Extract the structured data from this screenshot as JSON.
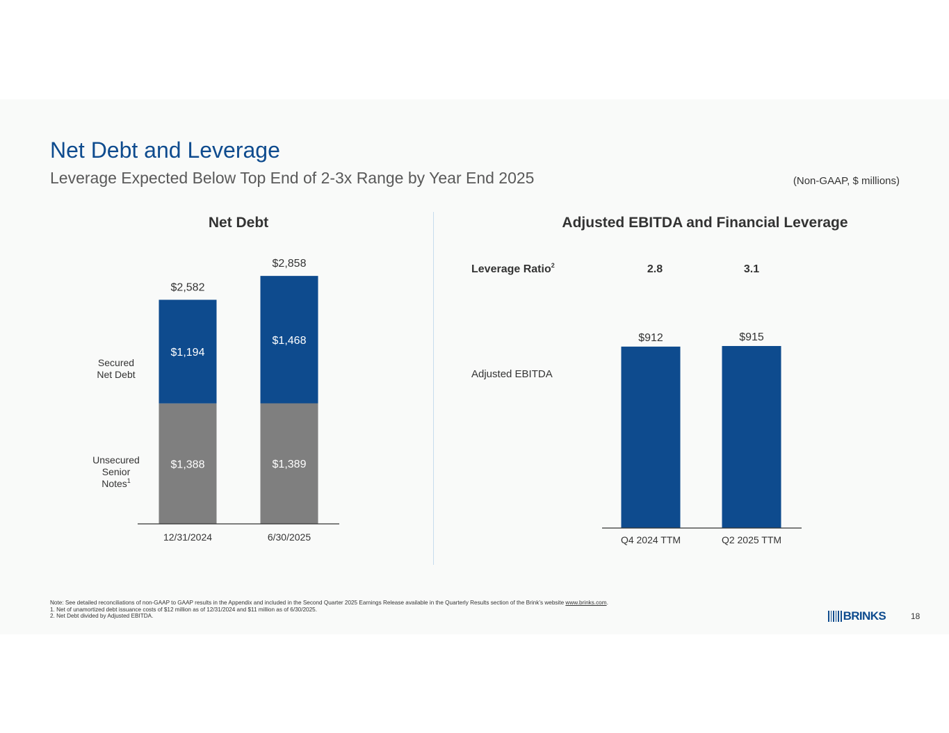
{
  "header": {
    "title": "Net Debt and Leverage",
    "subtitle": "Leverage Expected Below Top End of 2-3x Range by Year End 2025",
    "units_note": "(Non-GAAP, $ millions)"
  },
  "colors": {
    "brand_blue": "#0e4b8e",
    "bar_blue": "#0e4b8e",
    "bar_gray": "#7f7f7f",
    "divider": "#c6dbee"
  },
  "chart_data": [
    {
      "type": "bar",
      "stacked": true,
      "title": "Net Debt",
      "categories": [
        "12/31/2024",
        "6/30/2025"
      ],
      "series": [
        {
          "name": "Unsecured Senior Notes",
          "name_lines": [
            "Unsecured",
            "Senior",
            "Notes"
          ],
          "footnote_mark": "1",
          "values": [
            1388,
            1389
          ],
          "labels": [
            "$1,388",
            "$1,389"
          ]
        },
        {
          "name": "Secured Net Debt",
          "name_lines": [
            "Secured",
            "Net Debt"
          ],
          "values": [
            1194,
            1468
          ],
          "labels": [
            "$1,194",
            "$1,468"
          ]
        }
      ],
      "totals": [
        2582,
        2858
      ],
      "total_labels": [
        "$2,582",
        "$2,858"
      ],
      "ylim": [
        0,
        2858
      ]
    },
    {
      "type": "bar",
      "title": "Adjusted EBITDA and Financial Leverage",
      "categories": [
        "Q4 2024 TTM",
        "Q2 2025 TTM"
      ],
      "series": [
        {
          "name": "Adjusted EBITDA",
          "values": [
            912,
            915
          ],
          "labels": [
            "$912",
            "$915"
          ]
        }
      ],
      "leverage_ratio": {
        "label": "Leverage Ratio",
        "footnote_mark": "2",
        "values": [
          2.8,
          3.1
        ],
        "labels": [
          "2.8",
          "3.1"
        ]
      },
      "ylim": [
        0,
        915
      ]
    }
  ],
  "footnotes": {
    "note_prefix": "Note: See detailed reconciliations of non-GAAP to GAAP results in the Appendix and included in the Second Quarter 2025 Earnings Release available in the Quarterly Results section of the Brink’s website ",
    "note_link": "www.brinks.com",
    "note_suffix": ".",
    "items": [
      "1.  Net of unamortized debt issuance costs of $12 million as of 12/31/2024 and $11 million as of 6/30/2025.",
      "2.  Net Debt divided by Adjusted EBITDA."
    ]
  },
  "logo": {
    "text": "BRINKS"
  },
  "page_number": "18"
}
